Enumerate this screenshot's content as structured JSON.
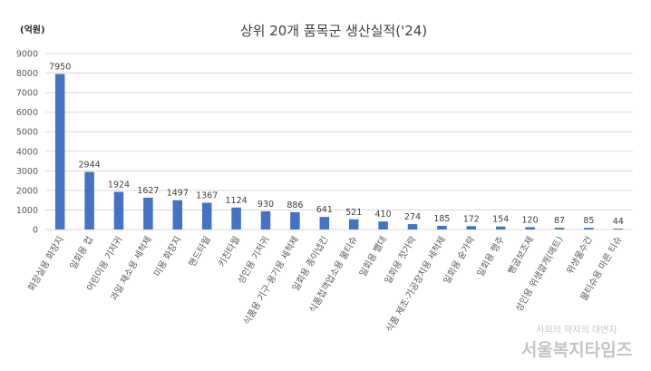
{
  "chart_data": {
    "type": "bar",
    "title": "상위 20개 품목군 생산실적('24)",
    "unit_label": "(억원)",
    "xlabel": "",
    "ylabel": "",
    "ylim": [
      0,
      9000
    ],
    "yticks": [
      0,
      1000,
      2000,
      3000,
      4000,
      5000,
      6000,
      7000,
      8000,
      9000
    ],
    "grid": true,
    "legend": "none",
    "bar_color": "#4472c4",
    "categories": [
      "화장실용 화장지",
      "일회용 컵",
      "어린이용 기저귀",
      "과일 채소용 세척제",
      "미용 화장지",
      "핸드타월",
      "키친타월",
      "성인용 기저귀",
      "식품용 기구·용기용 세척제",
      "일회용 종이냅킨",
      "식품접객업소용 물티슈",
      "일회용 빨대",
      "일회용 젓가락",
      "식품 제조·가공장치용 세척제",
      "일회용 숟가락",
      "일회용 행주",
      "뻥굽보조제",
      "성인용 위생깔개(매트)",
      "위생물수건",
      "물티슈용 마른 티슈"
    ],
    "values": [
      7950,
      2944,
      1924,
      1627,
      1497,
      1367,
      1124,
      930,
      886,
      641,
      521,
      410,
      274,
      185,
      172,
      154,
      120,
      87,
      85,
      44
    ]
  },
  "watermark": {
    "sub": "사회의 약자의 대변자",
    "main": "서울복지타임즈"
  }
}
